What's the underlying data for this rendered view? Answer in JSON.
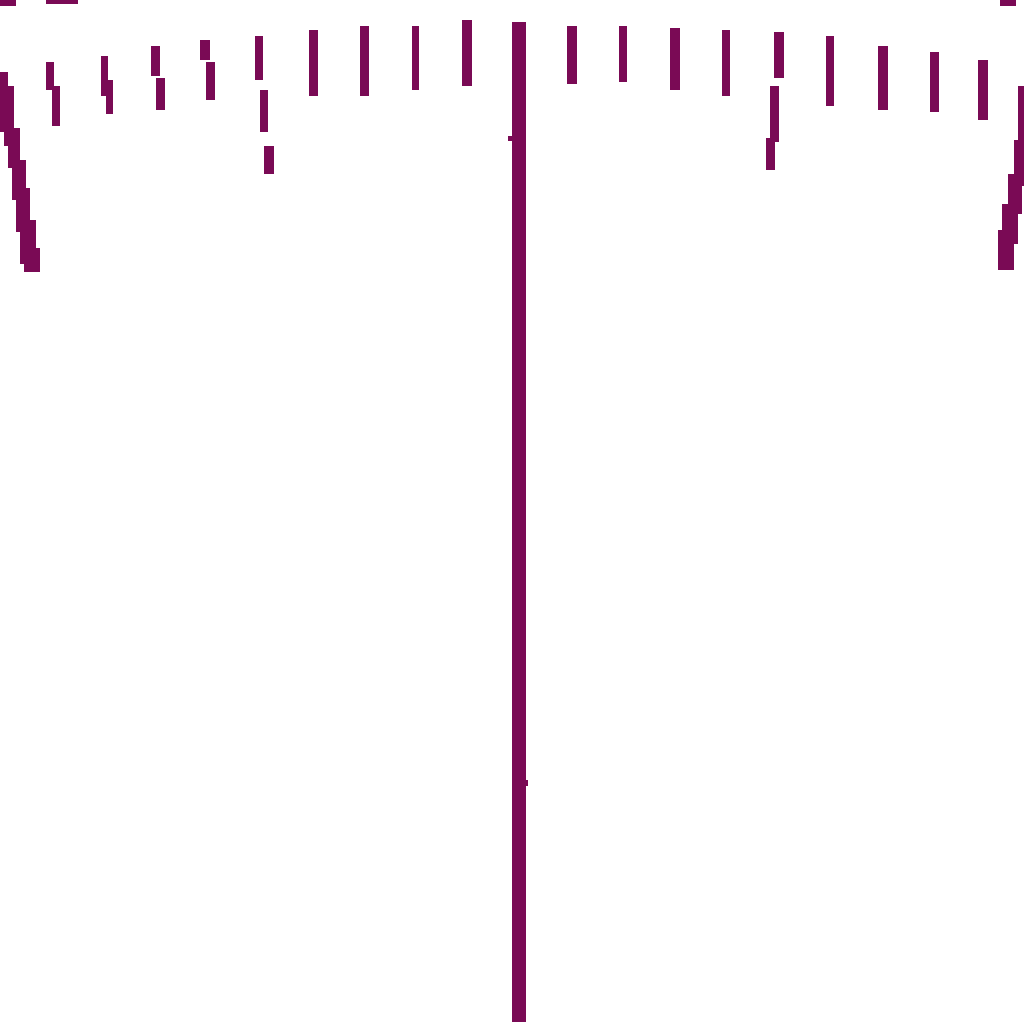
{
  "figure": {
    "background": "#ffffff",
    "stroke_color": "#7a0a55",
    "shape_description_hidden": true
  }
}
